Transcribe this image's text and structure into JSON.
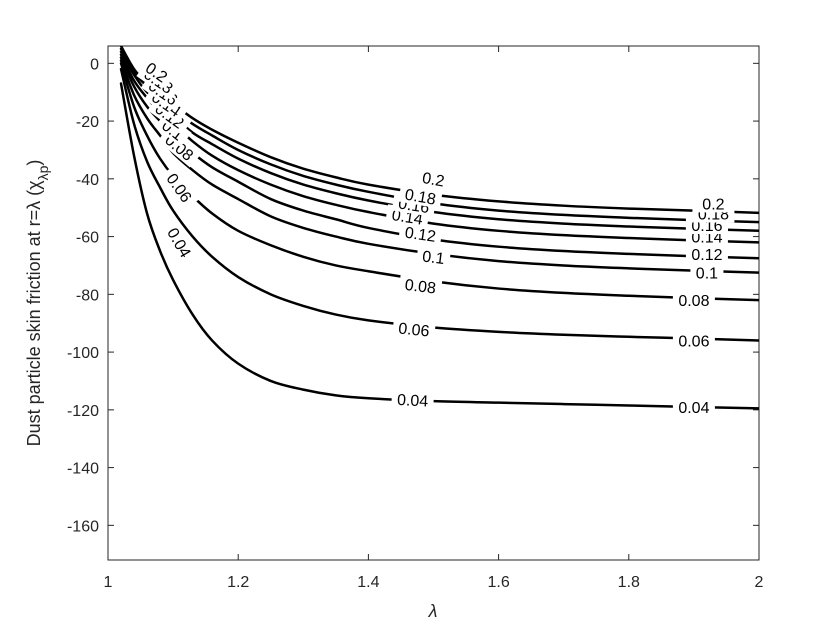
{
  "chart_data": {
    "type": "line",
    "title": "",
    "xlabel": "λ",
    "ylabel": "Dust particle skin friction at r=λ (χ",
    "ylabel_sub": "λp",
    "ylabel_close": ")",
    "xlim": [
      1,
      2
    ],
    "ylim": [
      -172,
      6
    ],
    "xticks": [
      1,
      1.2,
      1.4,
      1.6,
      1.8,
      2
    ],
    "xtick_labels": [
      "1",
      "1.2",
      "1.4",
      "1.6",
      "1.8",
      "2"
    ],
    "yticks": [
      0,
      -20,
      -40,
      -60,
      -80,
      -100,
      -120,
      -140,
      -160
    ],
    "ytick_labels": [
      "0",
      "-20",
      "-40",
      "-60",
      "-80",
      "-100",
      "-120",
      "-140",
      "-160"
    ],
    "grid": false,
    "legend": "none",
    "line_color": "#000000",
    "series": [
      {
        "name": "0.04",
        "x": [
          1.02,
          1.04,
          1.06,
          1.08,
          1.1,
          1.13,
          1.16,
          1.2,
          1.25,
          1.3,
          1.35,
          1.4,
          1.5,
          1.6,
          1.7,
          1.8,
          1.9,
          2.0
        ],
        "y": [
          -7,
          -32,
          -52,
          -65,
          -75,
          -87,
          -96,
          -104,
          -110,
          -113,
          -115,
          -116,
          -117,
          -117.5,
          -118,
          -118.5,
          -119,
          -119.5
        ],
        "labels": [
          {
            "text": "0.04",
            "x": 1.11,
            "y": -62,
            "angle": 60
          },
          {
            "text": "0.04",
            "x": 1.468,
            "y": -116.5,
            "angle": 3
          },
          {
            "text": "0.04",
            "x": 1.9,
            "y": -119,
            "angle": 0
          }
        ]
      },
      {
        "name": "0.06",
        "x": [
          1.02,
          1.04,
          1.06,
          1.08,
          1.1,
          1.13,
          1.16,
          1.2,
          1.25,
          1.3,
          1.35,
          1.4,
          1.5,
          1.6,
          1.7,
          1.8,
          1.9,
          2.0
        ],
        "y": [
          -2,
          -21,
          -34,
          -43,
          -51,
          -60,
          -67,
          -74,
          -80,
          -84,
          -87,
          -89,
          -91.5,
          -93,
          -94,
          -94.7,
          -95.3,
          -96
        ],
        "labels": [
          {
            "text": "0.06",
            "x": 1.11,
            "y": -43,
            "angle": 55
          },
          {
            "text": "0.06",
            "x": 1.47,
            "y": -92,
            "angle": 6
          },
          {
            "text": "0.06",
            "x": 1.9,
            "y": -96,
            "angle": 0
          }
        ]
      },
      {
        "name": "0.08",
        "x": [
          1.02,
          1.04,
          1.06,
          1.08,
          1.1,
          1.13,
          1.16,
          1.2,
          1.25,
          1.3,
          1.35,
          1.4,
          1.5,
          1.6,
          1.7,
          1.8,
          1.9,
          2.0
        ],
        "y": [
          0,
          -15,
          -25,
          -33,
          -39,
          -46,
          -52,
          -58,
          -63,
          -67,
          -70,
          -72,
          -75.5,
          -78,
          -79.5,
          -80.5,
          -81.3,
          -82
        ],
        "labels": [
          {
            "text": "0.08",
            "x": 1.11,
            "y": -29,
            "angle": 40
          },
          {
            "text": "0.08",
            "x": 1.48,
            "y": -77,
            "angle": 7
          },
          {
            "text": "0.08",
            "x": 1.9,
            "y": -82,
            "angle": 0
          }
        ]
      },
      {
        "name": "0.1",
        "x": [
          1.02,
          1.04,
          1.06,
          1.08,
          1.1,
          1.13,
          1.16,
          1.2,
          1.25,
          1.3,
          1.35,
          1.4,
          1.5,
          1.6,
          1.7,
          1.8,
          1.9,
          2.0
        ],
        "y": [
          1,
          -11,
          -19,
          -25,
          -31,
          -37,
          -42,
          -47,
          -53,
          -57,
          -60,
          -62.5,
          -66,
          -68.5,
          -70,
          -71,
          -71.8,
          -72.5
        ],
        "labels": [
          {
            "text": "0.1",
            "x": 1.1,
            "y": -23,
            "angle": 38
          },
          {
            "text": "0.1",
            "x": 1.5,
            "y": -67,
            "angle": 7
          },
          {
            "text": "0.1",
            "x": 1.92,
            "y": -72.5,
            "angle": 0
          }
        ]
      },
      {
        "name": "0.12",
        "x": [
          1.02,
          1.04,
          1.06,
          1.08,
          1.1,
          1.13,
          1.16,
          1.2,
          1.25,
          1.3,
          1.35,
          1.4,
          1.5,
          1.6,
          1.7,
          1.8,
          1.9,
          2.0
        ],
        "y": [
          2,
          -8,
          -15,
          -20,
          -25,
          -31,
          -36,
          -41,
          -47,
          -51,
          -54,
          -57,
          -61,
          -63.5,
          -65,
          -66,
          -66.8,
          -67.5
        ],
        "labels": [
          {
            "text": "0.12",
            "x": 1.095,
            "y": -18,
            "angle": 36
          },
          {
            "text": "0.12",
            "x": 1.48,
            "y": -59,
            "angle": 8
          },
          {
            "text": "0.12",
            "x": 1.92,
            "y": -66,
            "angle": 0
          }
        ]
      },
      {
        "name": "0.14",
        "x": [
          1.02,
          1.04,
          1.06,
          1.08,
          1.1,
          1.13,
          1.16,
          1.2,
          1.25,
          1.3,
          1.35,
          1.4,
          1.5,
          1.6,
          1.7,
          1.8,
          1.9,
          2.0
        ],
        "y": [
          3,
          -6,
          -12,
          -17,
          -21,
          -27,
          -32,
          -37,
          -42,
          -46,
          -49,
          -51.5,
          -55.5,
          -58,
          -59.5,
          -60.5,
          -61.3,
          -62
        ],
        "labels": [
          {
            "text": "0.14",
            "x": 1.09,
            "y": -14,
            "angle": 35
          },
          {
            "text": "0.14",
            "x": 1.46,
            "y": -53,
            "angle": 9
          },
          {
            "text": "0.14",
            "x": 1.92,
            "y": -60,
            "angle": 0
          }
        ]
      },
      {
        "name": "0.16",
        "x": [
          1.02,
          1.04,
          1.06,
          1.08,
          1.1,
          1.13,
          1.16,
          1.2,
          1.25,
          1.3,
          1.35,
          1.4,
          1.5,
          1.6,
          1.7,
          1.8,
          1.9,
          2.0
        ],
        "y": [
          4,
          -4,
          -10,
          -14,
          -18,
          -24,
          -28,
          -33,
          -38,
          -42,
          -45,
          -47.5,
          -51.5,
          -54,
          -55.5,
          -56.5,
          -57.3,
          -58
        ],
        "labels": [
          {
            "text": "0.16",
            "x": 1.085,
            "y": -10,
            "angle": 35
          },
          {
            "text": "0.16",
            "x": 1.47,
            "y": -49,
            "angle": 9
          },
          {
            "text": "0.16",
            "x": 1.92,
            "y": -56,
            "angle": 0
          }
        ]
      },
      {
        "name": "0.18",
        "x": [
          1.02,
          1.04,
          1.06,
          1.08,
          1.1,
          1.13,
          1.16,
          1.2,
          1.25,
          1.3,
          1.35,
          1.4,
          1.5,
          1.6,
          1.7,
          1.8,
          1.9,
          2.0
        ],
        "y": [
          5,
          -3,
          -8,
          -12,
          -16,
          -21,
          -25,
          -30,
          -35,
          -39,
          -42,
          -44.5,
          -48.5,
          -51,
          -52.5,
          -53.5,
          -54.3,
          -55
        ],
        "labels": [
          {
            "text": "0.18",
            "x": 1.078,
            "y": -6,
            "angle": 35
          },
          {
            "text": "0.18",
            "x": 1.48,
            "y": -46,
            "angle": 10
          },
          {
            "text": "0.18",
            "x": 1.93,
            "y": -52,
            "angle": 0
          }
        ]
      },
      {
        "name": "0.2",
        "x": [
          1.02,
          1.04,
          1.06,
          1.08,
          1.1,
          1.13,
          1.16,
          1.2,
          1.25,
          1.3,
          1.35,
          1.4,
          1.5,
          1.6,
          1.7,
          1.8,
          1.9,
          2.0
        ],
        "y": [
          6,
          -2,
          -7,
          -11,
          -14,
          -19,
          -23,
          -27.5,
          -32.5,
          -36.5,
          -39.5,
          -42,
          -45.5,
          -47.8,
          -49.3,
          -50.3,
          -51,
          -51.8
        ],
        "labels": [
          {
            "text": "0.2",
            "x": 1.075,
            "y": -3,
            "angle": 35
          },
          {
            "text": "0.2",
            "x": 1.5,
            "y": -40,
            "angle": 10
          },
          {
            "text": "0.2",
            "x": 1.93,
            "y": -48.5,
            "angle": 0
          }
        ]
      }
    ]
  }
}
